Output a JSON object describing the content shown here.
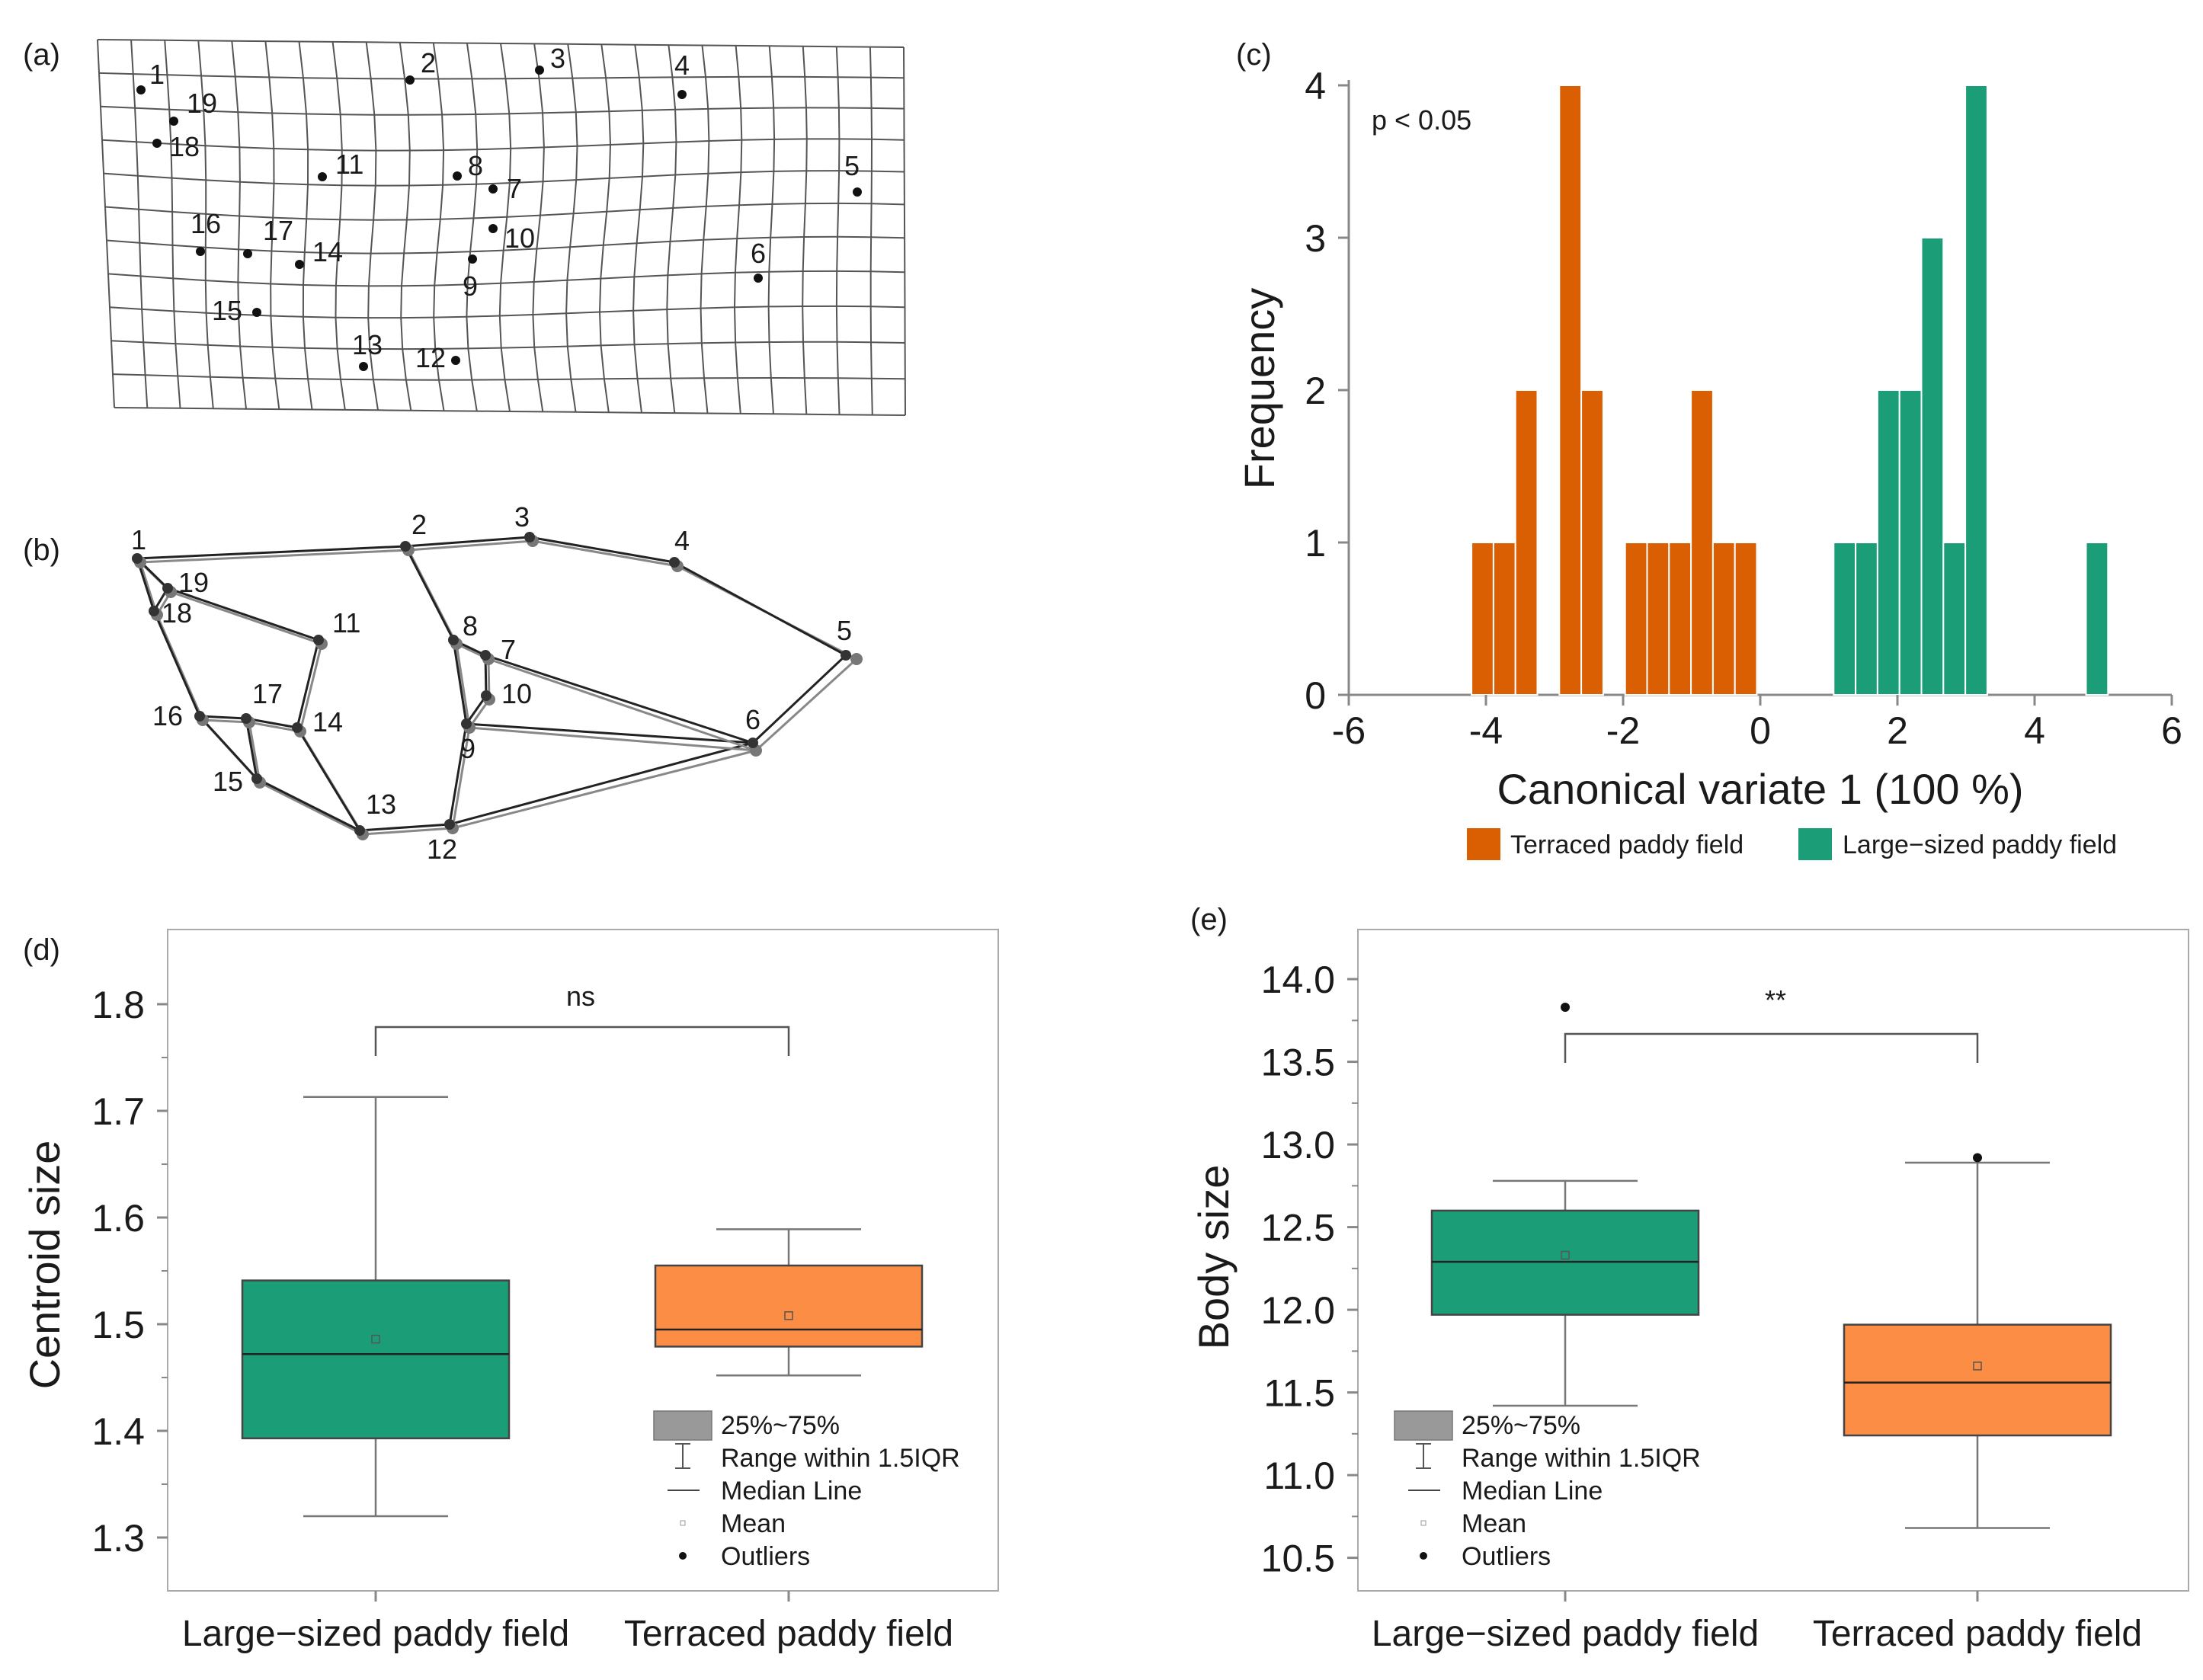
{
  "panels": {
    "a": "(a)",
    "b": "(b)",
    "c": "(c)",
    "d": "(d)",
    "e": "(e)"
  },
  "landmarks": [
    "1",
    "2",
    "3",
    "4",
    "5",
    "6",
    "7",
    "8",
    "9",
    "10",
    "11",
    "12",
    "13",
    "14",
    "15",
    "16",
    "17",
    "18",
    "19"
  ],
  "colors": {
    "terraced": "#d95f02",
    "large": "#1b9e77",
    "terraced_box": "#fc8d45",
    "large_box": "#1b9e77",
    "axis": "#888888",
    "grid": "#555555"
  },
  "chart_data": [
    {
      "id": "c",
      "type": "bar",
      "subtype": "histogram",
      "annotation": "p < 0.05",
      "xlabel": "Canonical variate 1 (100 %)",
      "ylabel": "Frequency",
      "xlim": [
        -6,
        6
      ],
      "ylim": [
        0,
        4
      ],
      "xticks": [
        "-6",
        "-4",
        "-2",
        "0",
        "2",
        "4",
        "6"
      ],
      "yticks": [
        "0",
        "1",
        "2",
        "3",
        "4"
      ],
      "bin_width": 0.32,
      "series": [
        {
          "name": "Terraced paddy field",
          "color": "#d95f02",
          "bins": [
            {
              "x": -4.05,
              "count": 1
            },
            {
              "x": -3.73,
              "count": 1
            },
            {
              "x": -3.41,
              "count": 2
            },
            {
              "x": -2.77,
              "count": 4
            },
            {
              "x": -2.45,
              "count": 2
            },
            {
              "x": -1.81,
              "count": 1
            },
            {
              "x": -1.49,
              "count": 1
            },
            {
              "x": -1.17,
              "count": 1
            },
            {
              "x": -0.85,
              "count": 2
            },
            {
              "x": -0.53,
              "count": 1
            },
            {
              "x": -0.21,
              "count": 1
            }
          ]
        },
        {
          "name": "Large-sized paddy field",
          "color": "#1b9e77",
          "bins": [
            {
              "x": 1.23,
              "count": 1
            },
            {
              "x": 1.55,
              "count": 1
            },
            {
              "x": 1.87,
              "count": 2
            },
            {
              "x": 2.19,
              "count": 2
            },
            {
              "x": 2.51,
              "count": 3
            },
            {
              "x": 2.83,
              "count": 1
            },
            {
              "x": 3.15,
              "count": 4
            },
            {
              "x": 4.91,
              "count": 1
            }
          ]
        }
      ],
      "legend": [
        "Terraced paddy field",
        "Large−sized paddy field"
      ],
      "legend_position": "bottom"
    },
    {
      "id": "d",
      "type": "box",
      "ylabel": "Centroid size",
      "ylim": [
        1.25,
        1.87
      ],
      "yticks": [
        "1.3",
        "1.4",
        "1.5",
        "1.6",
        "1.7",
        "1.8"
      ],
      "significance": "ns",
      "categories": [
        "Large−sized paddy field",
        "Terraced paddy field"
      ],
      "boxes": [
        {
          "q1": 1.393,
          "median": 1.472,
          "q3": 1.541,
          "mean": 1.486,
          "whisker_low": 1.32,
          "whisker_high": 1.713,
          "outliers": [],
          "color": "#1b9e77"
        },
        {
          "q1": 1.479,
          "median": 1.495,
          "q3": 1.555,
          "mean": 1.508,
          "whisker_low": 1.452,
          "whisker_high": 1.589,
          "outliers": [],
          "color": "#fc8d45"
        }
      ],
      "legend": [
        "25%~75%",
        "Range within 1.5IQR",
        "Median Line",
        "Mean",
        "Outliers"
      ]
    },
    {
      "id": "e",
      "type": "box",
      "ylabel": "Body size",
      "ylim": [
        10.3,
        14.3
      ],
      "yticks": [
        "10.5",
        "11.0",
        "11.5",
        "12.0",
        "12.5",
        "13.0",
        "13.5",
        "14.0"
      ],
      "significance": "**",
      "categories": [
        "Large−sized paddy field",
        "Terraced paddy field"
      ],
      "boxes": [
        {
          "q1": 11.97,
          "median": 12.29,
          "q3": 12.6,
          "mean": 12.33,
          "whisker_low": 11.42,
          "whisker_high": 12.78,
          "outliers": [
            13.83
          ],
          "color": "#1b9e77"
        },
        {
          "q1": 11.24,
          "median": 11.56,
          "q3": 11.91,
          "mean": 11.66,
          "whisker_low": 10.68,
          "whisker_high": 12.89,
          "outliers": [
            12.92
          ],
          "color": "#fc8d45"
        }
      ],
      "legend": [
        "25%~75%",
        "Range within 1.5IQR",
        "Median Line",
        "Mean",
        "Outliers"
      ]
    }
  ]
}
